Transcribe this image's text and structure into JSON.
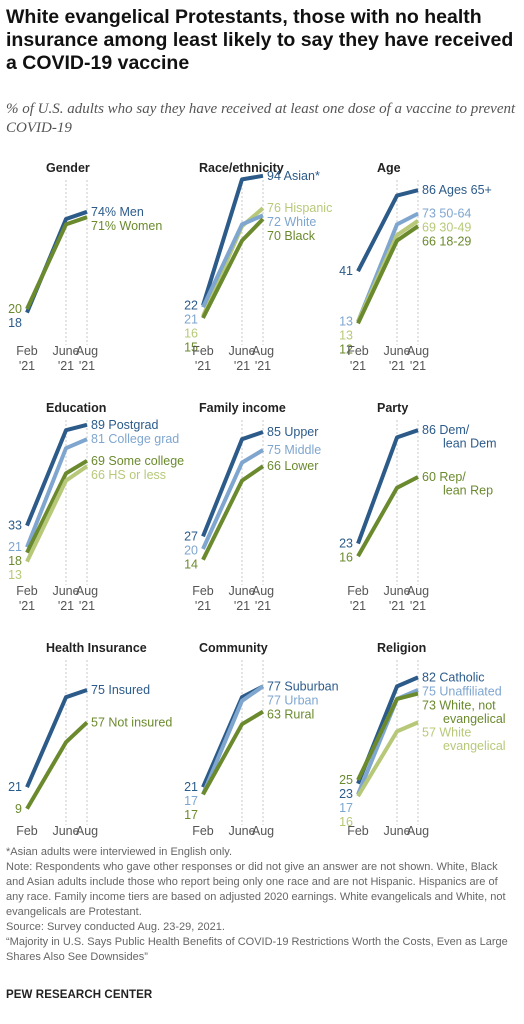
{
  "title": "White evangelical Protestants, those with no health insurance among least likely to say they have received a COVID-19 vaccine",
  "subtitle": "% of U.S. adults who say they have received at least one dose of a vaccine to prevent COVID-19",
  "x_ticks": [
    {
      "line1": "Feb",
      "line2": "'21"
    },
    {
      "line1": "June",
      "line2": "'21"
    },
    {
      "line1": "Aug",
      "line2": "'21"
    }
  ],
  "colors": {
    "dark_blue": "#2c5b8a",
    "mid_blue": "#7fa6cf",
    "dark_green": "#6b8a2e",
    "light_green": "#b7c979",
    "grid": "#bdbdbd"
  },
  "chart_data": [
    {
      "type": "line",
      "title": "Gender",
      "x": [
        "Feb '21",
        "June '21",
        "Aug '21"
      ],
      "ylim": [
        0,
        100
      ],
      "series": [
        {
          "name": "Men",
          "label": "74% Men",
          "values": [
            18,
            70,
            74
          ],
          "color": "#2c5b8a"
        },
        {
          "name": "Women",
          "label": "71% Women",
          "values": [
            20,
            67,
            71
          ],
          "color": "#6b8a2e"
        }
      ]
    },
    {
      "type": "line",
      "title": "Race/ethnicity",
      "x": [
        "Feb '21",
        "June '21",
        "Aug '21"
      ],
      "ylim": [
        0,
        100
      ],
      "series": [
        {
          "name": "Asian",
          "label": "94 Asian*",
          "values": [
            22,
            92,
            94
          ],
          "color": "#2c5b8a"
        },
        {
          "name": "Hispanic",
          "label": "76 Hispanic",
          "values": [
            16,
            66,
            76
          ],
          "color": "#b7c979"
        },
        {
          "name": "White",
          "label": "72 White",
          "values": [
            21,
            67,
            72
          ],
          "color": "#7fa6cf"
        },
        {
          "name": "Black",
          "label": "70 Black",
          "values": [
            15,
            58,
            70
          ],
          "color": "#6b8a2e"
        }
      ]
    },
    {
      "type": "line",
      "title": "Age",
      "x": [
        "Feb '21",
        "June '21",
        "Aug '21"
      ],
      "ylim": [
        0,
        100
      ],
      "series": [
        {
          "name": "Ages 65+",
          "label": "86 Ages 65+",
          "values": [
            41,
            83,
            86
          ],
          "color": "#2c5b8a"
        },
        {
          "name": "50-64",
          "label": "73 50-64",
          "values": [
            13,
            67,
            73
          ],
          "color": "#7fa6cf"
        },
        {
          "name": "30-49",
          "label": "69 30-49",
          "values": [
            13,
            61,
            69
          ],
          "color": "#b7c979"
        },
        {
          "name": "18-29",
          "label": "66 18-29",
          "values": [
            12,
            58,
            66
          ],
          "color": "#6b8a2e"
        }
      ]
    },
    {
      "type": "line",
      "title": "Education",
      "x": [
        "Feb '21",
        "June '21",
        "Aug '21"
      ],
      "ylim": [
        0,
        100
      ],
      "series": [
        {
          "name": "Postgrad",
          "label": "89 Postgrad",
          "values": [
            33,
            86,
            89
          ],
          "color": "#2c5b8a"
        },
        {
          "name": "College grad",
          "label": "81 College grad",
          "values": [
            21,
            76,
            81
          ],
          "color": "#7fa6cf"
        },
        {
          "name": "Some college",
          "label": "69 Some college",
          "values": [
            18,
            62,
            69
          ],
          "color": "#6b8a2e"
        },
        {
          "name": "HS or less",
          "label": "66 HS or less",
          "values": [
            13,
            58,
            66
          ],
          "color": "#b7c979"
        }
      ]
    },
    {
      "type": "line",
      "title": "Family income",
      "x": [
        "Feb '21",
        "June '21",
        "Aug '21"
      ],
      "ylim": [
        0,
        100
      ],
      "series": [
        {
          "name": "Upper",
          "label": "85 Upper",
          "values": [
            27,
            81,
            85
          ],
          "color": "#2c5b8a"
        },
        {
          "name": "Middle",
          "label": "75 Middle",
          "values": [
            20,
            68,
            75
          ],
          "color": "#7fa6cf"
        },
        {
          "name": "Lower",
          "label": "66 Lower",
          "values": [
            14,
            58,
            66
          ],
          "color": "#6b8a2e"
        }
      ]
    },
    {
      "type": "line",
      "title": "Party",
      "x": [
        "Feb '21",
        "June '21",
        "Aug '21"
      ],
      "ylim": [
        0,
        100
      ],
      "series": [
        {
          "name": "Dem/lean Dem",
          "label": "86 Dem/ lean Dem",
          "label_lines": [
            "86 Dem/",
            "lean Dem"
          ],
          "values": [
            23,
            82,
            86
          ],
          "color": "#2c5b8a"
        },
        {
          "name": "Rep/lean Rep",
          "label": "60 Rep/ lean Rep",
          "label_lines": [
            "60 Rep/",
            "lean Rep"
          ],
          "values": [
            16,
            54,
            60
          ],
          "color": "#6b8a2e"
        }
      ]
    },
    {
      "type": "line",
      "title": "Health Insurance",
      "x": [
        "Feb '21",
        "June '21",
        "Aug '21"
      ],
      "ylim": [
        0,
        100
      ],
      "series": [
        {
          "name": "Insured",
          "label": "75 Insured",
          "values": [
            21,
            71,
            75
          ],
          "color": "#2c5b8a"
        },
        {
          "name": "Not insured",
          "label": "57 Not insured",
          "values": [
            9,
            46,
            57
          ],
          "color": "#6b8a2e"
        }
      ]
    },
    {
      "type": "line",
      "title": "Community",
      "x": [
        "Feb '21",
        "June '21",
        "Aug '21"
      ],
      "ylim": [
        0,
        100
      ],
      "series": [
        {
          "name": "Suburban",
          "label": "77 Suburban",
          "values": [
            21,
            71,
            77
          ],
          "color": "#2c5b8a"
        },
        {
          "name": "Urban",
          "label": "77 Urban",
          "values": [
            17,
            69,
            77
          ],
          "color": "#7fa6cf"
        },
        {
          "name": "Rural",
          "label": "63 Rural",
          "values": [
            17,
            56,
            63
          ],
          "color": "#6b8a2e"
        }
      ]
    },
    {
      "type": "line",
      "title": "Religion",
      "x": [
        "Feb '21",
        "June '21",
        "Aug '21"
      ],
      "ylim": [
        0,
        100
      ],
      "series": [
        {
          "name": "Catholic",
          "label": "82 Catholic",
          "values": [
            23,
            77,
            82
          ],
          "color": "#2c5b8a"
        },
        {
          "name": "Unaffiliated",
          "label": "75 Unaffiliated",
          "values": [
            17,
            70,
            75
          ],
          "color": "#7fa6cf"
        },
        {
          "name": "White, not evangelical",
          "label": "73 White, not evangelical",
          "label_lines": [
            "73 White, not",
            "evangelical"
          ],
          "values": [
            25,
            70,
            73
          ],
          "color": "#6b8a2e"
        },
        {
          "name": "White evangelical",
          "label": "57 White evangelical",
          "label_lines": [
            "57 White",
            "evangelical"
          ],
          "values": [
            16,
            52,
            57
          ],
          "color": "#b7c979"
        }
      ]
    }
  ],
  "notes": [
    "*Asian adults were interviewed in English only.",
    "Note: Respondents who gave other responses or did not give an answer are not shown. White, Black and Asian adults include those who report being only one race and are not Hispanic. Hispanics are of any race. Family income tiers are based on adjusted 2020 earnings. White evangelicals and White, not evangelicals are Protestant.",
    "Source: Survey conducted Aug. 23-29, 2021.",
    "“Majority in U.S. Says Public Health Benefits of COVID-19 Restrictions Worth the Costs, Even as Large Shares Also See Downsides”"
  ],
  "brand": "PEW RESEARCH CENTER"
}
